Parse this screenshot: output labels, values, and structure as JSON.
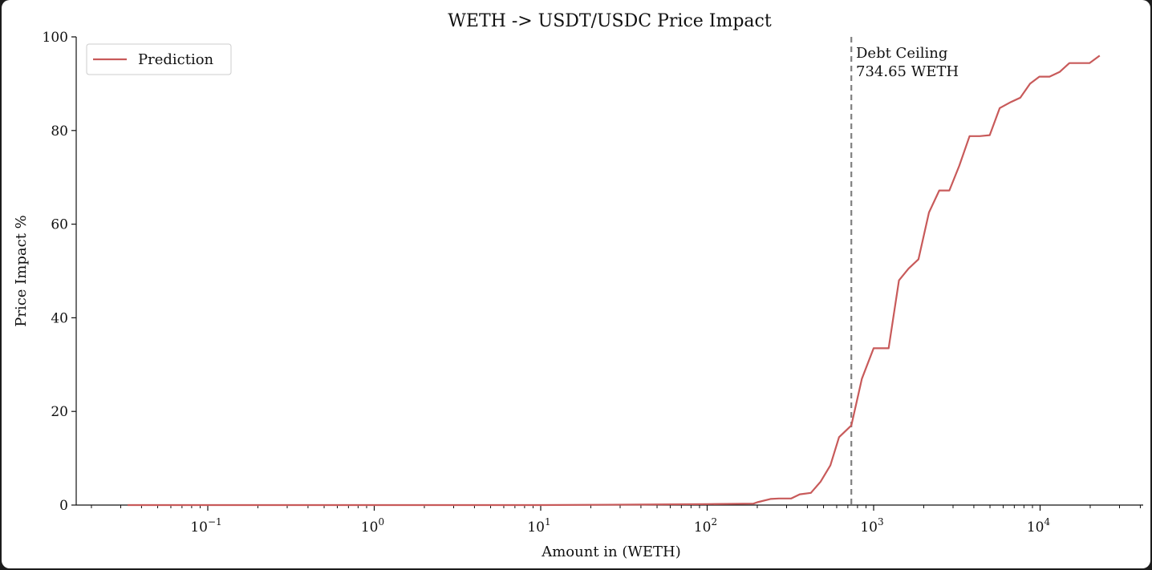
{
  "chart_data": {
    "type": "line",
    "title": "WETH -> USDT/USDC Price Impact",
    "xlabel": "Amount in (WETH)",
    "ylabel": "Price Impact %",
    "xscale": "log",
    "xlim": [
      0.02,
      45000
    ],
    "ylim": [
      0,
      100
    ],
    "grid": false,
    "legend_position": "top-left",
    "y_ticks": [
      0,
      20,
      40,
      60,
      80,
      100
    ],
    "x_ticks": [
      {
        "value": 0.1,
        "base": "10",
        "exp": "−1"
      },
      {
        "value": 1,
        "base": "10",
        "exp": "0"
      },
      {
        "value": 10,
        "base": "10",
        "exp": "1"
      },
      {
        "value": 100,
        "base": "10",
        "exp": "2"
      },
      {
        "value": 1000,
        "base": "10",
        "exp": "3"
      },
      {
        "value": 10000,
        "base": "10",
        "exp": "4"
      }
    ],
    "series": [
      {
        "name": "Prediction",
        "color": "#c85a5a",
        "points": [
          [
            0.033,
            0
          ],
          [
            0.1,
            0
          ],
          [
            1,
            0
          ],
          [
            10,
            0
          ],
          [
            40,
            0.1
          ],
          [
            100,
            0.2
          ],
          [
            190,
            0.3
          ],
          [
            200,
            0.6
          ],
          [
            240,
            1.3
          ],
          [
            270,
            1.4
          ],
          [
            320,
            1.4
          ],
          [
            360,
            2.3
          ],
          [
            420,
            2.6
          ],
          [
            480,
            5
          ],
          [
            550,
            8.5
          ],
          [
            620,
            14.5
          ],
          [
            700,
            16.3
          ],
          [
            734.65,
            17
          ],
          [
            850,
            27
          ],
          [
            1000,
            33.5
          ],
          [
            1230,
            33.5
          ],
          [
            1420,
            48
          ],
          [
            1620,
            50.5
          ],
          [
            1860,
            52.5
          ],
          [
            2150,
            62.5
          ],
          [
            2480,
            67.2
          ],
          [
            2850,
            67.2
          ],
          [
            3270,
            72.5
          ],
          [
            3770,
            78.8
          ],
          [
            4340,
            78.8
          ],
          [
            4980,
            79
          ],
          [
            5720,
            84.8
          ],
          [
            6600,
            86
          ],
          [
            7600,
            87
          ],
          [
            8700,
            90
          ],
          [
            9900,
            91.5
          ],
          [
            11400,
            91.5
          ],
          [
            13100,
            92.5
          ],
          [
            15000,
            94.4
          ],
          [
            17300,
            94.4
          ],
          [
            19800,
            94.4
          ],
          [
            22800,
            96
          ]
        ]
      }
    ],
    "reference_line": {
      "x": 734.65,
      "style": "dashed",
      "color": "#808080",
      "label_line1": "Debt Ceiling",
      "label_line2": "734.65 WETH"
    }
  }
}
